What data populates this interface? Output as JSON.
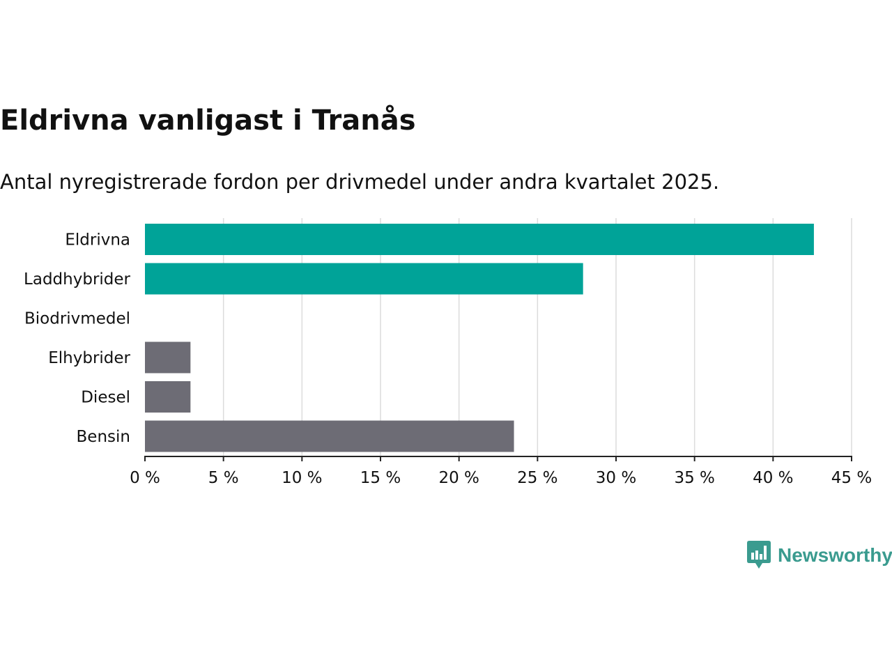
{
  "brand": {
    "name": "Newsworthy",
    "color": "#3a9b8f",
    "icon": "bar-chart-speech-bubble-icon"
  },
  "colors": {
    "highlight": "#00a398",
    "other": "#6d6c75",
    "grid": "#dcdcdc",
    "axis": "#222222",
    "text": "#111111"
  },
  "chart_data": {
    "type": "bar",
    "orientation": "horizontal",
    "title": "Eldrivna vanligast i Tranås",
    "subtitle": "Antal nyregistrerade fordon per drivmedel under andra kvartalet 2025.",
    "xlabel": "",
    "ylabel": "",
    "unit": "%",
    "xlim": [
      0,
      45
    ],
    "xticks": [
      0,
      5,
      10,
      15,
      20,
      25,
      30,
      35,
      40,
      45
    ],
    "xtick_labels": [
      "0 %",
      "5 %",
      "10 %",
      "15 %",
      "20 %",
      "25 %",
      "30 %",
      "35 %",
      "40 %",
      "45 %"
    ],
    "grid": true,
    "legend": "none",
    "categories": [
      "Eldrivna",
      "Laddhybrider",
      "Biodrivmedel",
      "Elhybrider",
      "Diesel",
      "Bensin"
    ],
    "values": [
      42.6,
      27.9,
      0,
      2.9,
      2.9,
      23.5
    ],
    "highlighted": [
      true,
      true,
      true,
      false,
      false,
      false
    ]
  }
}
